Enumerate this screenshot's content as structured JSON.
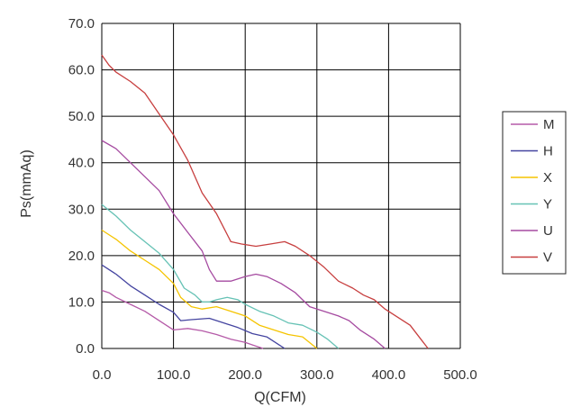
{
  "chart_data": {
    "type": "line",
    "xlabel": "Q(CFM)",
    "ylabel": "Ps(mmAq)",
    "xlim": [
      0,
      500
    ],
    "ylim": [
      0,
      70
    ],
    "xticks": [
      0,
      100,
      200,
      300,
      400,
      500
    ],
    "yticks": [
      0,
      10,
      20,
      30,
      40,
      50,
      60,
      70
    ],
    "xtick_labels": [
      "0.0",
      "100.0",
      "200.0",
      "300.0",
      "400.0",
      "500.0"
    ],
    "ytick_labels": [
      "0.0",
      "10.0",
      "20.0",
      "30.0",
      "40.0",
      "50.0",
      "60.0",
      "70.0"
    ],
    "grid": true,
    "legend_position": "right",
    "series": [
      {
        "name": "M",
        "color": "#b55aa8",
        "points": [
          [
            0,
            12.5
          ],
          [
            10,
            12
          ],
          [
            20,
            11
          ],
          [
            40,
            9.5
          ],
          [
            60,
            8
          ],
          [
            80,
            6
          ],
          [
            100,
            4
          ],
          [
            120,
            4.3
          ],
          [
            140,
            3.8
          ],
          [
            160,
            3
          ],
          [
            180,
            2
          ],
          [
            200,
            1.3
          ],
          [
            215,
            0.5
          ],
          [
            225,
            0
          ]
        ]
      },
      {
        "name": "H",
        "color": "#4444a0",
        "points": [
          [
            0,
            18
          ],
          [
            20,
            16
          ],
          [
            40,
            13.5
          ],
          [
            60,
            11.5
          ],
          [
            80,
            9.5
          ],
          [
            100,
            7.8
          ],
          [
            110,
            6
          ],
          [
            125,
            6.2
          ],
          [
            150,
            6.5
          ],
          [
            170,
            5.5
          ],
          [
            190,
            4.5
          ],
          [
            210,
            3.2
          ],
          [
            230,
            2.5
          ],
          [
            245,
            1
          ],
          [
            255,
            0
          ]
        ]
      },
      {
        "name": "X",
        "color": "#f5c400",
        "points": [
          [
            0,
            25.5
          ],
          [
            20,
            23.5
          ],
          [
            40,
            21
          ],
          [
            60,
            19
          ],
          [
            80,
            17
          ],
          [
            100,
            14
          ],
          [
            110,
            11
          ],
          [
            125,
            9
          ],
          [
            140,
            8.5
          ],
          [
            160,
            9
          ],
          [
            180,
            8
          ],
          [
            200,
            7
          ],
          [
            220,
            5
          ],
          [
            240,
            4
          ],
          [
            260,
            3
          ],
          [
            280,
            2.5
          ],
          [
            300,
            0
          ]
        ]
      },
      {
        "name": "Y",
        "color": "#66c2b5",
        "points": [
          [
            0,
            31
          ],
          [
            20,
            28.5
          ],
          [
            40,
            25.5
          ],
          [
            60,
            23
          ],
          [
            80,
            20.5
          ],
          [
            100,
            17
          ],
          [
            115,
            13
          ],
          [
            130,
            11.5
          ],
          [
            140,
            10
          ],
          [
            150,
            10
          ],
          [
            160,
            10.5
          ],
          [
            175,
            11
          ],
          [
            190,
            10.5
          ],
          [
            200,
            9.5
          ],
          [
            220,
            8
          ],
          [
            240,
            7
          ],
          [
            260,
            5.5
          ],
          [
            280,
            5
          ],
          [
            300,
            3.5
          ],
          [
            315,
            2
          ],
          [
            330,
            0
          ]
        ]
      },
      {
        "name": "U",
        "color": "#a54aa0",
        "points": [
          [
            0,
            44.8
          ],
          [
            20,
            43
          ],
          [
            40,
            40
          ],
          [
            60,
            37
          ],
          [
            80,
            34
          ],
          [
            100,
            29
          ],
          [
            120,
            25
          ],
          [
            140,
            21
          ],
          [
            150,
            17
          ],
          [
            160,
            14.5
          ],
          [
            180,
            14.5
          ],
          [
            200,
            15.5
          ],
          [
            215,
            16
          ],
          [
            230,
            15.5
          ],
          [
            250,
            14
          ],
          [
            270,
            12
          ],
          [
            290,
            9
          ],
          [
            310,
            8
          ],
          [
            330,
            7
          ],
          [
            345,
            6
          ],
          [
            360,
            4
          ],
          [
            380,
            2
          ],
          [
            395,
            0
          ]
        ]
      },
      {
        "name": "V",
        "color": "#c73f3f",
        "points": [
          [
            0,
            63.2
          ],
          [
            10,
            61
          ],
          [
            20,
            59.5
          ],
          [
            40,
            57.5
          ],
          [
            60,
            55
          ],
          [
            80,
            50.5
          ],
          [
            100,
            46
          ],
          [
            120,
            40.5
          ],
          [
            140,
            33.5
          ],
          [
            160,
            29
          ],
          [
            180,
            23
          ],
          [
            195,
            22.5
          ],
          [
            215,
            22
          ],
          [
            235,
            22.5
          ],
          [
            255,
            23
          ],
          [
            270,
            22
          ],
          [
            290,
            20
          ],
          [
            310,
            17.5
          ],
          [
            330,
            14.5
          ],
          [
            350,
            13
          ],
          [
            365,
            11.5
          ],
          [
            380,
            10.5
          ],
          [
            395,
            8.5
          ],
          [
            410,
            7
          ],
          [
            430,
            5
          ],
          [
            445,
            2
          ],
          [
            455,
            0
          ]
        ]
      }
    ]
  }
}
